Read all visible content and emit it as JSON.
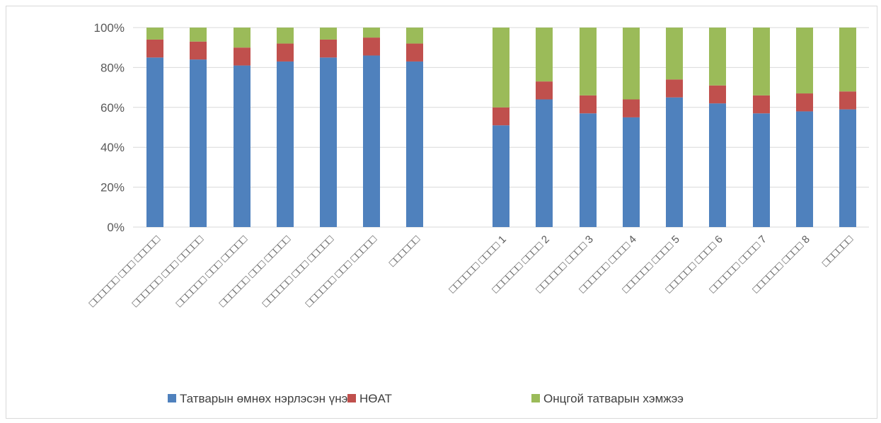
{
  "chart_data": {
    "type": "bar",
    "stacked": true,
    "normalized": true,
    "y_unit": "%",
    "ylim": [
      0,
      100
    ],
    "yticks": [
      "0%",
      "20%",
      "40%",
      "60%",
      "80%",
      "100%"
    ],
    "grid": true,
    "legend_position": "bottom",
    "groups": [
      {
        "categories": [
          "□□□□□□ □□□ □□□□□",
          "□□□□□□ □□□ □□□□□",
          "□□□□□□ □□□ □□□□□",
          "□□□□□□ □□□ □□□□□",
          "□□□□□□ □□□ □□□□□",
          "□□□□□□ □□□ □□□□□",
          "□□□□□□"
        ]
      },
      {
        "categories": [
          "□□□□□□ □□□□ 1",
          "□□□□□□ □□□□ 2",
          "□□□□□□ □□□□ 3",
          "□□□□□□ □□□□ 4",
          "□□□□□□ □□□□ 5",
          "□□□□□□ □□□□ 6",
          "□□□□□□ □□□□ 7",
          "□□□□□□ □□□□ 8",
          "□□□□□□"
        ]
      }
    ],
    "series": [
      {
        "name": "Татварын өмнөх нэрлэсэн  үнэ",
        "color": "#4f81bd",
        "values": [
          85,
          84,
          81,
          83,
          85,
          86,
          83,
          51,
          64,
          57,
          55,
          65,
          62,
          57,
          58,
          59
        ]
      },
      {
        "name": "НӨАТ",
        "color": "#c0504d",
        "values": [
          9,
          9,
          9,
          9,
          9,
          9,
          9,
          9,
          9,
          9,
          9,
          9,
          9,
          9,
          9,
          9
        ]
      },
      {
        "name": "Онцгой татварын хэмжээ",
        "color": "#9bbb59",
        "values": [
          6,
          7,
          10,
          8,
          6,
          5,
          8,
          40,
          27,
          34,
          36,
          26,
          29,
          34,
          33,
          32
        ]
      }
    ]
  }
}
